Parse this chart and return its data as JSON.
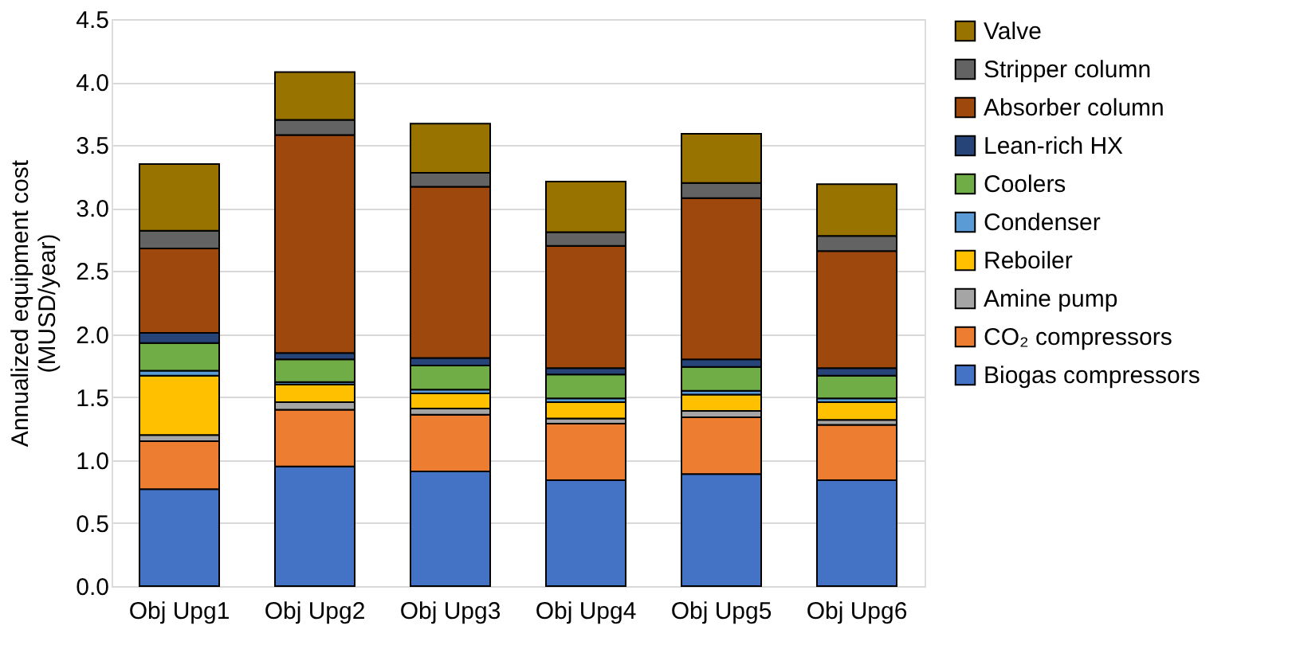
{
  "chart_data": {
    "type": "bar",
    "stacked": true,
    "ylabel": "Annualized equipment cost\n(MUSD/year)",
    "categories": [
      "Obj Upg1",
      "Obj Upg2",
      "Obj Upg3",
      "Obj Upg4",
      "Obj Upg5",
      "Obj Upg6"
    ],
    "series": [
      {
        "name": "Biogas compressors",
        "color": "#4472c4",
        "values": [
          0.77,
          0.95,
          0.91,
          0.84,
          0.89,
          0.84
        ]
      },
      {
        "name": "CO₂ compressors",
        "color": "#ed7d31",
        "values": [
          0.38,
          0.45,
          0.45,
          0.45,
          0.45,
          0.44
        ]
      },
      {
        "name": "Amine pump",
        "color": "#a5a5a5",
        "values": [
          0.05,
          0.06,
          0.05,
          0.04,
          0.05,
          0.04
        ]
      },
      {
        "name": "Reboiler",
        "color": "#ffc000",
        "values": [
          0.47,
          0.14,
          0.12,
          0.13,
          0.13,
          0.14
        ]
      },
      {
        "name": "Condenser",
        "color": "#5b9bd5",
        "values": [
          0.04,
          0.02,
          0.03,
          0.03,
          0.03,
          0.03
        ]
      },
      {
        "name": "Coolers",
        "color": "#70ad47",
        "values": [
          0.22,
          0.18,
          0.19,
          0.19,
          0.19,
          0.18
        ]
      },
      {
        "name": "Lean-rich HX",
        "color": "#264478",
        "values": [
          0.08,
          0.05,
          0.06,
          0.05,
          0.06,
          0.06
        ]
      },
      {
        "name": "Absorber column",
        "color": "#9e480e",
        "values": [
          0.67,
          1.73,
          1.36,
          0.97,
          1.28,
          0.93
        ]
      },
      {
        "name": "Stripper column",
        "color": "#636363",
        "values": [
          0.14,
          0.12,
          0.11,
          0.11,
          0.12,
          0.12
        ]
      },
      {
        "name": "Valve",
        "color": "#997300",
        "values": [
          0.53,
          0.38,
          0.39,
          0.4,
          0.39,
          0.41
        ]
      }
    ],
    "ylim": [
      0,
      4.5
    ],
    "yticks": [
      {
        "value": 0,
        "label": "0.0"
      },
      0.5,
      {
        "value": 1,
        "label": "1.0"
      },
      1.5,
      {
        "value": 2,
        "label": "2.0"
      },
      2.5,
      {
        "value": 3,
        "label": "3.0"
      },
      3.5,
      {
        "value": 4,
        "label": "4.0"
      },
      4.5
    ],
    "grid": "y",
    "legend": "right"
  }
}
